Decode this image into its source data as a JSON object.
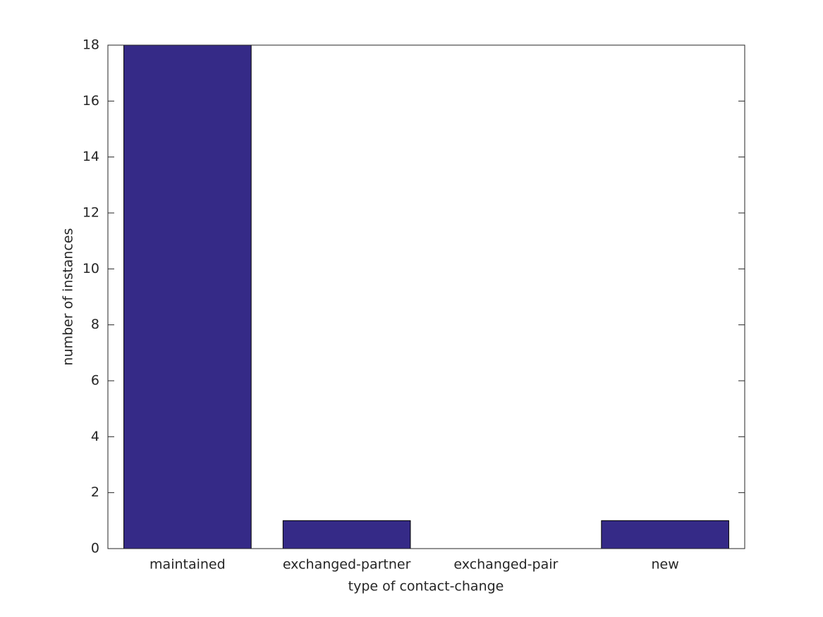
{
  "chart_data": {
    "type": "bar",
    "xlabel": "type of contact-change",
    "ylabel": "number of instances",
    "categories": [
      "maintained",
      "exchanged-partner",
      "exchanged-pair",
      "new"
    ],
    "values": [
      18,
      1,
      0,
      1
    ],
    "color": "#352a87",
    "ylim": [
      0,
      18
    ],
    "yticks": [
      0,
      2,
      4,
      6,
      8,
      10,
      12,
      14,
      16,
      18
    ],
    "grid": false
  }
}
